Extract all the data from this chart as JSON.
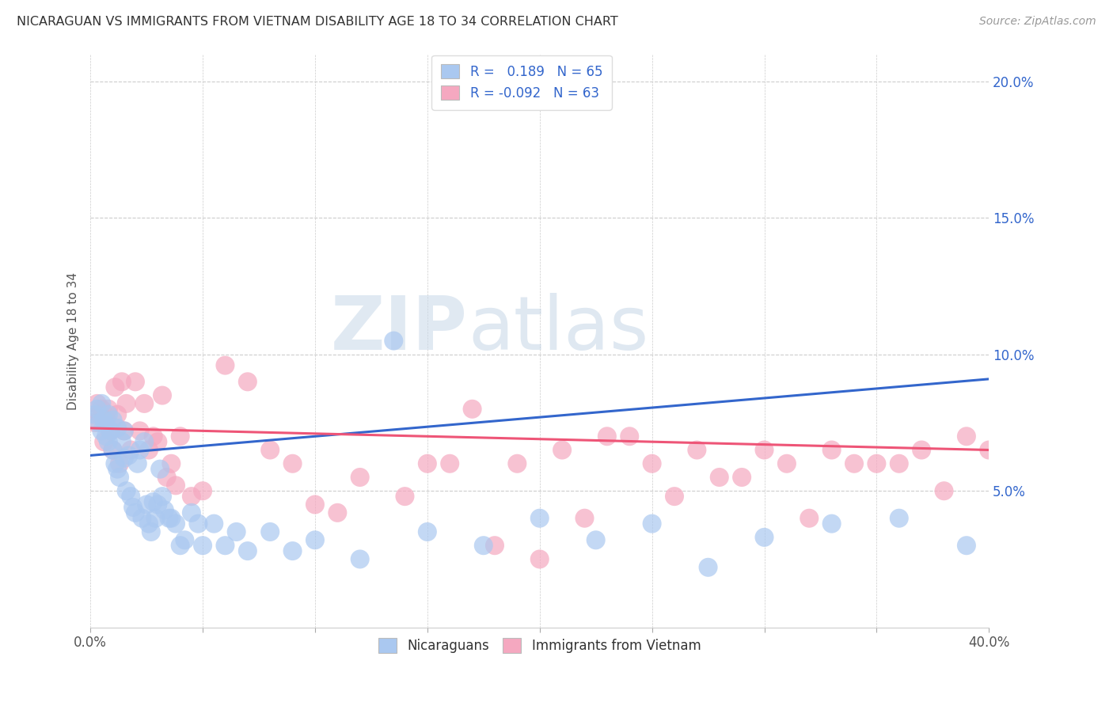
{
  "title": "NICARAGUAN VS IMMIGRANTS FROM VIETNAM DISABILITY AGE 18 TO 34 CORRELATION CHART",
  "source": "Source: ZipAtlas.com",
  "ylabel": "Disability Age 18 to 34",
  "xlim": [
    0.0,
    0.4
  ],
  "ylim": [
    0.0,
    0.21
  ],
  "yticks": [
    0.05,
    0.1,
    0.15,
    0.2
  ],
  "ytick_labels": [
    "5.0%",
    "10.0%",
    "15.0%",
    "20.0%"
  ],
  "xticks": [
    0.0,
    0.05,
    0.1,
    0.15,
    0.2,
    0.25,
    0.3,
    0.35,
    0.4
  ],
  "xtick_labels_show": [
    "0.0%",
    "",
    "",
    "",
    "",
    "",
    "",
    "",
    "40.0%"
  ],
  "nicaraguan_color": "#aac8f0",
  "vietnam_color": "#f5a8c0",
  "line_blue": "#3366cc",
  "line_pink": "#ee5577",
  "R_nicaraguan": 0.189,
  "N_nicaraguan": 65,
  "R_vietnam": -0.092,
  "N_vietnam": 63,
  "background_color": "#ffffff",
  "grid_color": "#cccccc",
  "nic_line_start": 0.063,
  "nic_line_end": 0.091,
  "vie_line_start": 0.073,
  "vie_line_end": 0.065,
  "nicaraguan_x": [
    0.002,
    0.003,
    0.004,
    0.005,
    0.005,
    0.006,
    0.007,
    0.007,
    0.008,
    0.008,
    0.009,
    0.01,
    0.01,
    0.011,
    0.012,
    0.012,
    0.013,
    0.014,
    0.015,
    0.015,
    0.016,
    0.017,
    0.018,
    0.019,
    0.02,
    0.021,
    0.022,
    0.023,
    0.024,
    0.025,
    0.026,
    0.027,
    0.028,
    0.029,
    0.03,
    0.031,
    0.032,
    0.033,
    0.035,
    0.036,
    0.038,
    0.04,
    0.042,
    0.045,
    0.048,
    0.05,
    0.055,
    0.06,
    0.065,
    0.07,
    0.08,
    0.09,
    0.1,
    0.12,
    0.135,
    0.15,
    0.175,
    0.2,
    0.225,
    0.25,
    0.275,
    0.3,
    0.33,
    0.36,
    0.39
  ],
  "nicaraguan_y": [
    0.078,
    0.08,
    0.075,
    0.082,
    0.072,
    0.076,
    0.07,
    0.074,
    0.068,
    0.078,
    0.072,
    0.065,
    0.076,
    0.06,
    0.058,
    0.073,
    0.055,
    0.068,
    0.062,
    0.072,
    0.05,
    0.063,
    0.048,
    0.044,
    0.042,
    0.06,
    0.065,
    0.04,
    0.068,
    0.045,
    0.038,
    0.035,
    0.046,
    0.04,
    0.045,
    0.058,
    0.048,
    0.043,
    0.04,
    0.04,
    0.038,
    0.03,
    0.032,
    0.042,
    0.038,
    0.03,
    0.038,
    0.03,
    0.035,
    0.028,
    0.035,
    0.028,
    0.032,
    0.025,
    0.105,
    0.035,
    0.03,
    0.04,
    0.032,
    0.038,
    0.022,
    0.033,
    0.038,
    0.04,
    0.03
  ],
  "vietnam_x": [
    0.002,
    0.003,
    0.004,
    0.005,
    0.006,
    0.007,
    0.008,
    0.009,
    0.01,
    0.011,
    0.012,
    0.013,
    0.014,
    0.015,
    0.016,
    0.018,
    0.02,
    0.022,
    0.024,
    0.026,
    0.028,
    0.03,
    0.032,
    0.034,
    0.036,
    0.038,
    0.04,
    0.045,
    0.05,
    0.06,
    0.07,
    0.08,
    0.09,
    0.1,
    0.11,
    0.12,
    0.14,
    0.16,
    0.18,
    0.2,
    0.22,
    0.24,
    0.26,
    0.28,
    0.3,
    0.32,
    0.34,
    0.36,
    0.38,
    0.15,
    0.17,
    0.19,
    0.21,
    0.23,
    0.25,
    0.27,
    0.29,
    0.31,
    0.33,
    0.35,
    0.37,
    0.39,
    0.4
  ],
  "vietnam_y": [
    0.075,
    0.082,
    0.078,
    0.08,
    0.068,
    0.076,
    0.08,
    0.072,
    0.065,
    0.088,
    0.078,
    0.06,
    0.09,
    0.072,
    0.082,
    0.065,
    0.09,
    0.072,
    0.082,
    0.065,
    0.07,
    0.068,
    0.085,
    0.055,
    0.06,
    0.052,
    0.07,
    0.048,
    0.05,
    0.096,
    0.09,
    0.065,
    0.06,
    0.045,
    0.042,
    0.055,
    0.048,
    0.06,
    0.03,
    0.025,
    0.04,
    0.07,
    0.048,
    0.055,
    0.065,
    0.04,
    0.06,
    0.06,
    0.05,
    0.06,
    0.08,
    0.06,
    0.065,
    0.07,
    0.06,
    0.065,
    0.055,
    0.06,
    0.065,
    0.06,
    0.065,
    0.07,
    0.065
  ]
}
